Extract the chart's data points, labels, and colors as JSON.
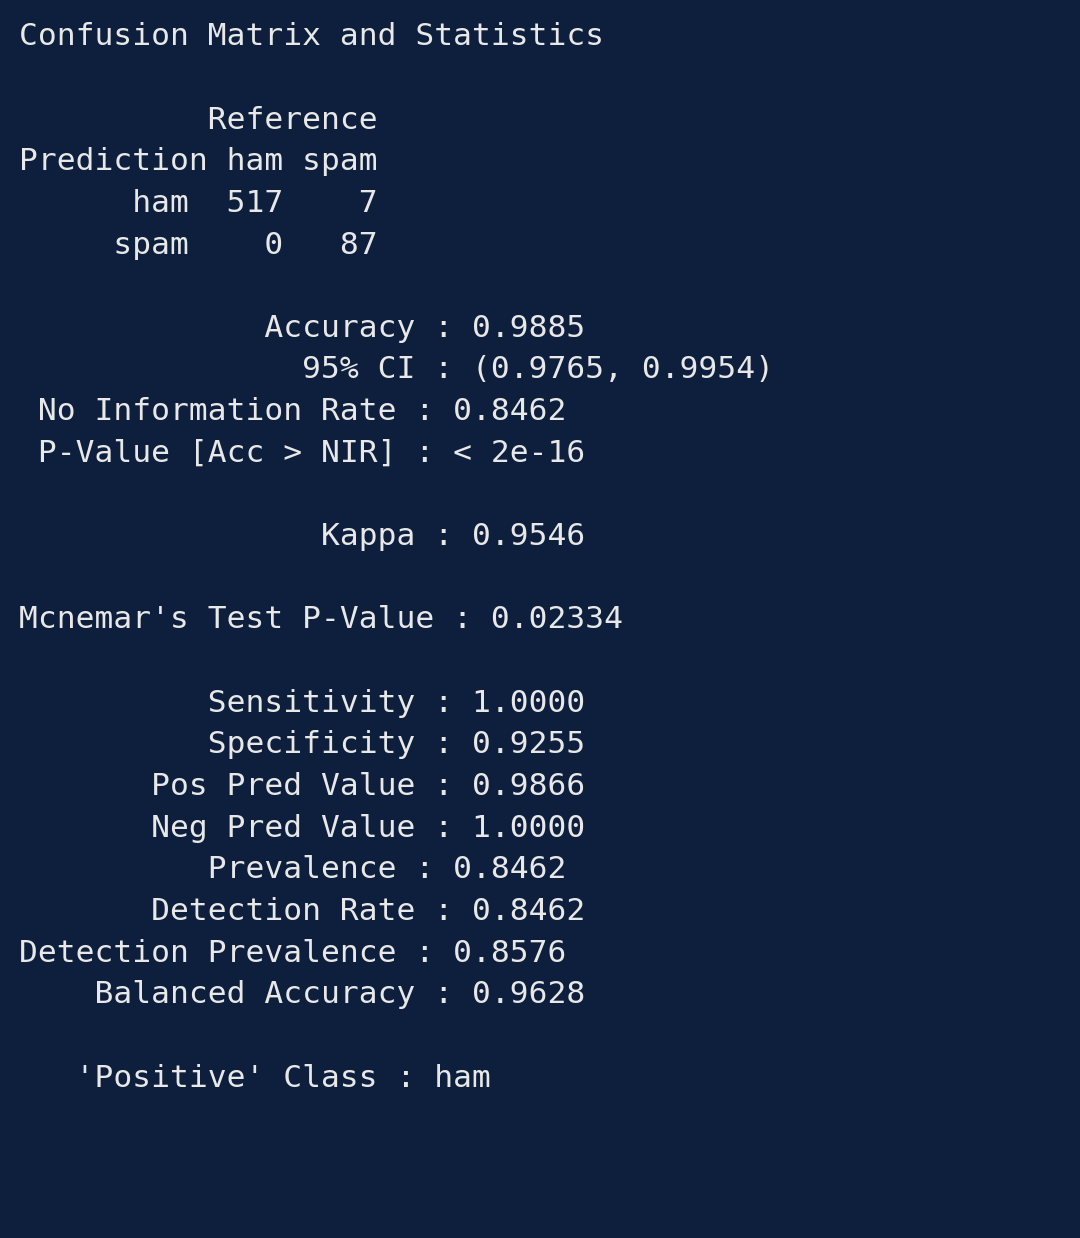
{
  "bg_color": "#0d1f3c",
  "text_color": "#e8e8e8",
  "font_family": "monospace",
  "fontsize": 22.5,
  "content": "Confusion Matrix and Statistics\n\n          Reference\nPrediction ham spam\n      ham  517    7\n     spam    0   87\n\n             Accuracy : 0.9885\n               95% CI : (0.9765, 0.9954)\n No Information Rate : 0.8462\n P-Value [Acc > NIR] : < 2e-16\n\n                Kappa : 0.9546\n\nMcnemar's Test P-Value : 0.02334\n\n          Sensitivity : 1.0000\n          Specificity : 0.9255\n       Pos Pred Value : 0.9866\n       Neg Pred Value : 1.0000\n          Prevalence : 0.8462\n       Detection Rate : 0.8462\nDetection Prevalence : 0.8576\n    Balanced Accuracy : 0.9628\n\n   'Positive' Class : ham"
}
